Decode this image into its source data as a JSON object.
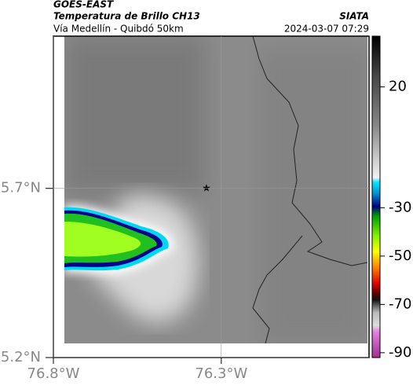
{
  "header": {
    "source": "GOES-EAST",
    "title": "Temperatura de Brillo CH13",
    "org": "SIATA",
    "subtitle": "Vía Medellín - Quibdó 50km",
    "datetime": "2024-03-07 07:29"
  },
  "map": {
    "lat": {
      "lim": [
        5.2,
        6.15
      ],
      "ticks": [
        {
          "value": 5.7,
          "label": "5.7°N"
        },
        {
          "value": 5.2,
          "label": "5.2°N"
        }
      ]
    },
    "lon": {
      "lim": [
        -76.8,
        -75.86
      ],
      "ticks": [
        {
          "value": -76.8,
          "label": "76.8°W"
        },
        {
          "value": -76.3,
          "label": "76.3°W"
        }
      ]
    }
  },
  "colorbar": {
    "lim": [
      -92,
      41
    ],
    "ticks": [
      20,
      -30,
      -50,
      -70,
      -90
    ]
  }
}
